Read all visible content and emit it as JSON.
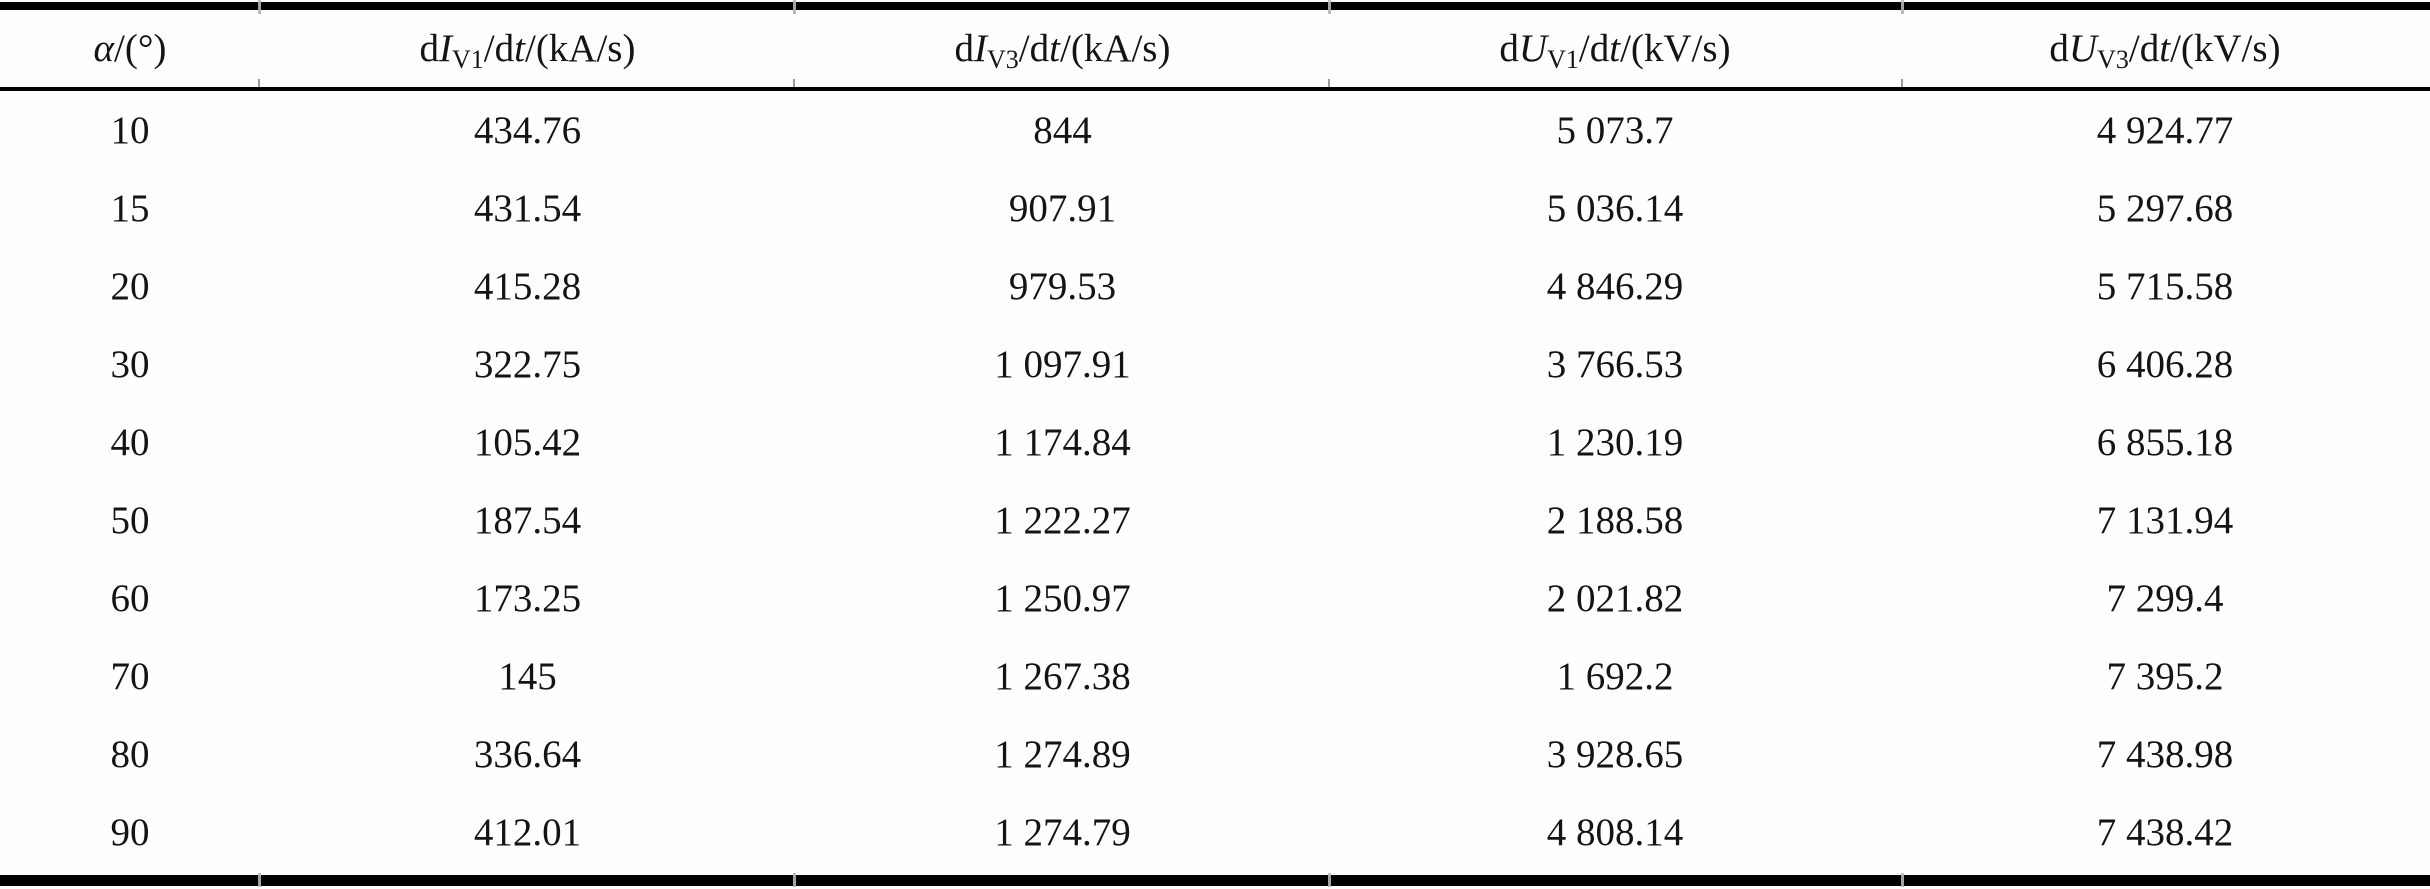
{
  "table": {
    "columns": [
      {
        "label": "α/(°)",
        "parts": {
          "sym": "α",
          "unit": "/(°)"
        }
      },
      {
        "label": "dIV1/dt/(kA/s)",
        "parts": {
          "d": "d",
          "sym": "I",
          "sub": "V1",
          "mid": "/d",
          "t": "t",
          "unit": "/(kA/s)"
        }
      },
      {
        "label": "dIV3/dt/(kA/s)",
        "parts": {
          "d": "d",
          "sym": "I",
          "sub": "V3",
          "mid": "/d",
          "t": "t",
          "unit": "/(kA/s)"
        }
      },
      {
        "label": "dUV1/dt/(kV/s)",
        "parts": {
          "d": "d",
          "sym": "U",
          "sub": "V1",
          "mid": "/d",
          "t": "t",
          "unit": "/(kV/s)"
        }
      },
      {
        "label": "dUV3/dt/(kV/s)",
        "parts": {
          "d": "d",
          "sym": "U",
          "sub": "V3",
          "mid": "/d",
          "t": "t",
          "unit": "/(kV/s)"
        }
      }
    ],
    "rows": [
      [
        "10",
        "434.76",
        "844",
        "5 073.7",
        "4 924.77"
      ],
      [
        "15",
        "431.54",
        "907.91",
        "5 036.14",
        "5 297.68"
      ],
      [
        "20",
        "415.28",
        "979.53",
        "4 846.29",
        "5 715.58"
      ],
      [
        "30",
        "322.75",
        "1 097.91",
        "3 766.53",
        "6 406.28"
      ],
      [
        "40",
        "105.42",
        "1 174.84",
        "1 230.19",
        "6 855.18"
      ],
      [
        "50",
        "187.54",
        "1 222.27",
        "2 188.58",
        "7 131.94"
      ],
      [
        "60",
        "173.25",
        "1 250.97",
        "2 021.82",
        "7 299.4"
      ],
      [
        "70",
        "145",
        "1 267.38",
        "1 692.2",
        "7 395.2"
      ],
      [
        "80",
        "336.64",
        "1 274.89",
        "3 928.65",
        "7 438.98"
      ],
      [
        "90",
        "412.01",
        "1 274.79",
        "4 808.14",
        "7 438.42"
      ]
    ],
    "colors": {
      "text": "#141414",
      "rule": "#000000",
      "background": "#fefefe"
    }
  },
  "chart_data": {
    "type": "table",
    "columns": [
      "α/(°)",
      "dIV1/dt/(kA/s)",
      "dIV3/dt/(kA/s)",
      "dUV1/dt/(kV/s)",
      "dUV3/dt/(kV/s)"
    ],
    "rows": [
      [
        10,
        434.76,
        844,
        5073.7,
        4924.77
      ],
      [
        15,
        431.54,
        907.91,
        5036.14,
        5297.68
      ],
      [
        20,
        415.28,
        979.53,
        4846.29,
        5715.58
      ],
      [
        30,
        322.75,
        1097.91,
        3766.53,
        6406.28
      ],
      [
        40,
        105.42,
        1174.84,
        1230.19,
        6855.18
      ],
      [
        50,
        187.54,
        1222.27,
        2188.58,
        7131.94
      ],
      [
        60,
        173.25,
        1250.97,
        2021.82,
        7299.4
      ],
      [
        70,
        145,
        1267.38,
        1692.2,
        7395.2
      ],
      [
        80,
        336.64,
        1274.89,
        3928.65,
        7438.98
      ],
      [
        90,
        412.01,
        1274.79,
        4808.14,
        7438.42
      ]
    ]
  }
}
